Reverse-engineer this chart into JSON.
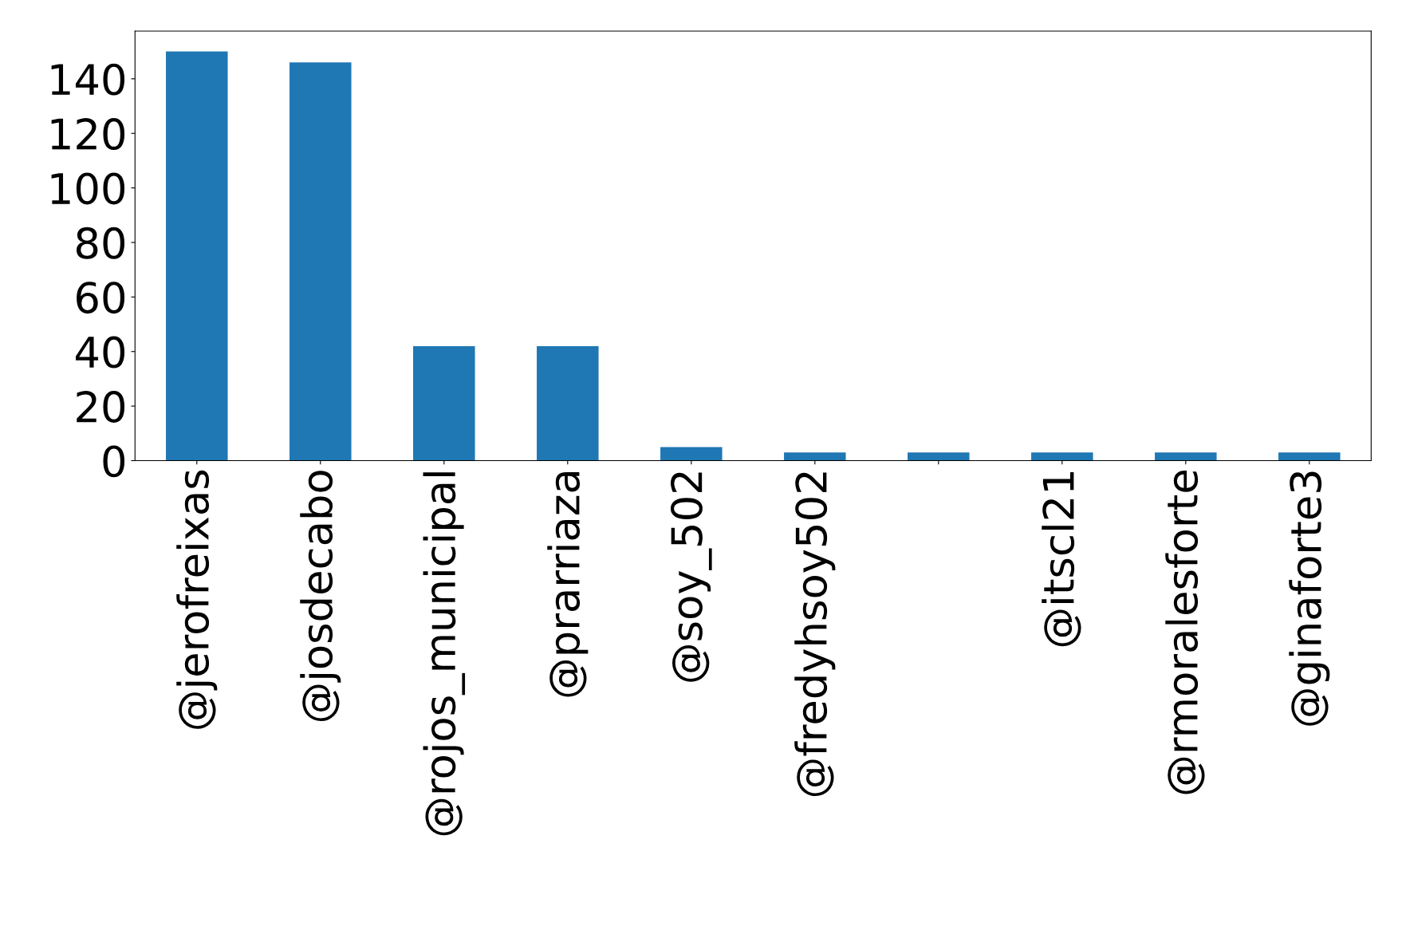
{
  "chart_data": {
    "type": "bar",
    "categories": [
      "@jerofreixas",
      "@josdecabo",
      "@rojos_municipal",
      "@prarriaza",
      "@soy_502",
      "@fredyhsoy502",
      null,
      "@itscl21",
      "@rmoralesforte",
      "@ginaforte3"
    ],
    "values": [
      150,
      146,
      42,
      42,
      5,
      3,
      3,
      3,
      3,
      3
    ],
    "color": "#1f77b4",
    "ylim": [
      0,
      157.5
    ],
    "yticks": [
      0,
      20,
      40,
      60,
      80,
      100,
      120,
      140
    ],
    "grid": false,
    "legend": false
  }
}
